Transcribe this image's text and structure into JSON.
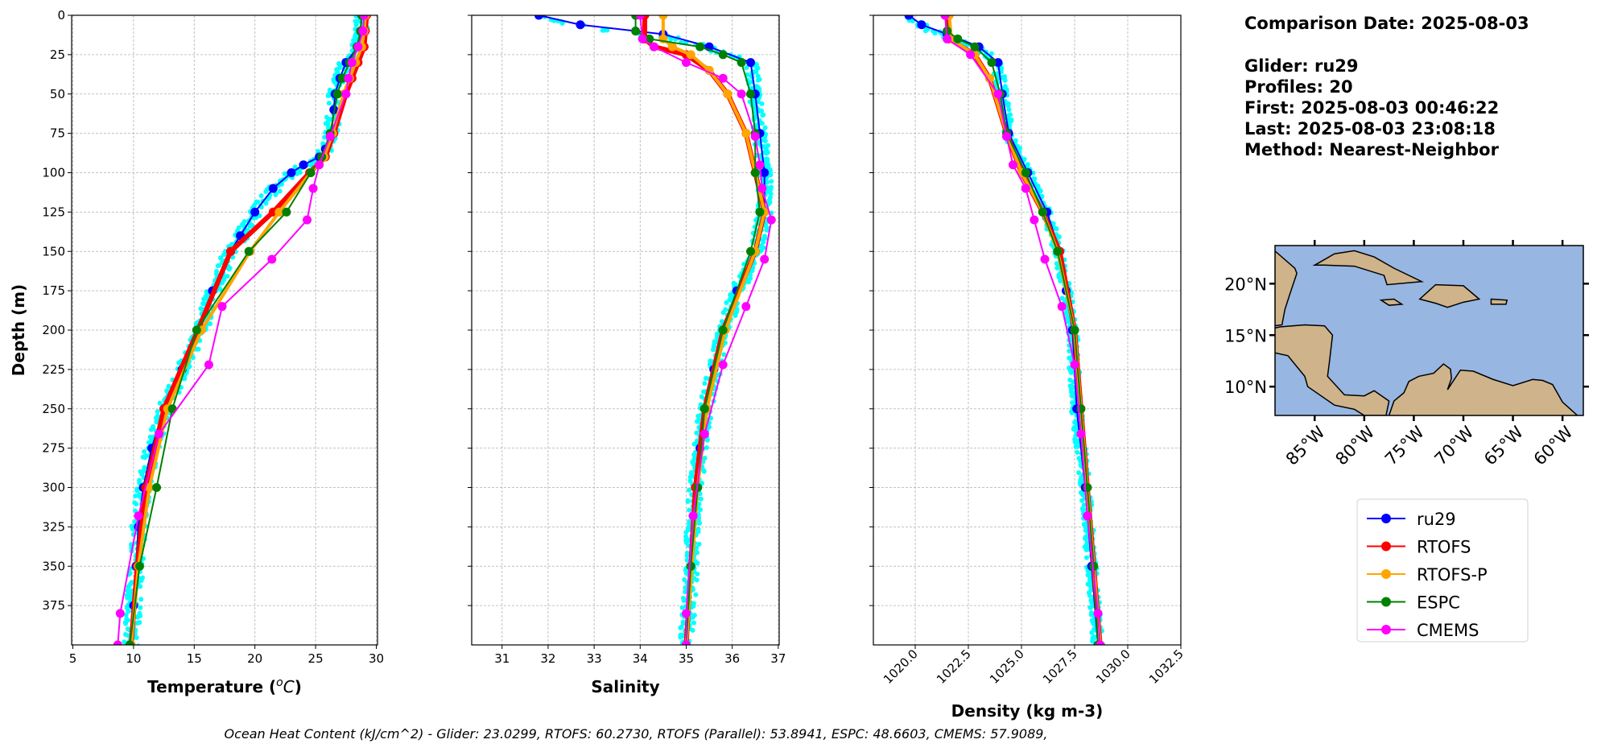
{
  "info": {
    "comparison_date": "Comparison Date: 2025-08-03",
    "glider": "Glider: ru29",
    "profiles": "Profiles: 20",
    "first": "First: 2025-08-03 00:46:22",
    "last": "Last: 2025-08-03 23:08:18",
    "method": "Method: Nearest-Neighbor"
  },
  "footer": "Ocean Heat Content (kJ/cm^2) - Glider: 23.0299,  RTOFS: 60.2730,  RTOFS (Parallel): 53.8941,  ESPC: 48.6603,  CMEMS: 57.9089,",
  "legend": [
    {
      "name": "ru29",
      "color": "#0000ff"
    },
    {
      "name": "RTOFS",
      "color": "#ff0000"
    },
    {
      "name": "RTOFS-P",
      "color": "#ffa500"
    },
    {
      "name": "ESPC",
      "color": "#008000"
    },
    {
      "name": "CMEMS",
      "color": "#ff00ff"
    }
  ],
  "map": {
    "lon_ticks": [
      "85°W",
      "80°W",
      "75°W",
      "70°W",
      "65°W",
      "60°W"
    ],
    "lon_values": [
      -85,
      -80,
      -75,
      -70,
      -65,
      -60
    ],
    "lat_ticks": [
      "20°N",
      "15°N",
      "10°N"
    ],
    "lat_values": [
      20,
      15,
      10
    ],
    "lon_range": [
      -89,
      -57.9
    ],
    "lat_range": [
      7.2,
      23.7
    ],
    "ocean_color": "#97b6e1",
    "land_color": "#cfb38a"
  },
  "chart_data": {
    "type": "line",
    "ylabel": "Depth (m)",
    "ylim": [
      400,
      0
    ],
    "yticks": [
      0,
      25,
      50,
      75,
      100,
      125,
      150,
      175,
      200,
      225,
      250,
      275,
      300,
      325,
      350,
      375
    ],
    "glider_raw_color": "#00ffff",
    "panels": [
      {
        "key": "temperature",
        "xlabel": "Temperature (",
        "xlabel_unit": "o",
        "xlabel_unit2": "C",
        "xlabel_end": ")",
        "xlim": [
          4.9,
          30.1
        ],
        "xticks": [
          5,
          10,
          15,
          20,
          25,
          30
        ],
        "raw_spread": 0.6,
        "series": {
          "ru29": [
            [
              0,
              28.8
            ],
            [
              10,
              28.7
            ],
            [
              20,
              28.5
            ],
            [
              30,
              27.5
            ],
            [
              40,
              27
            ],
            [
              50,
              26.6
            ],
            [
              60,
              26.5
            ],
            [
              75,
              26.3
            ],
            [
              85,
              25.8
            ],
            [
              90,
              25.3
            ],
            [
              95,
              24
            ],
            [
              100,
              23
            ],
            [
              110,
              21.5
            ],
            [
              125,
              20
            ],
            [
              140,
              18.8
            ],
            [
              150,
              18
            ],
            [
              175,
              16.5
            ],
            [
              200,
              15.5
            ],
            [
              225,
              14
            ],
            [
              250,
              12.5
            ],
            [
              275,
              11.5
            ],
            [
              300,
              10.8
            ],
            [
              325,
              10.4
            ],
            [
              350,
              10.2
            ],
            [
              375,
              10
            ],
            [
              400,
              9.8
            ]
          ],
          "RTOFS": [
            [
              0,
              29.2
            ],
            [
              10,
              29.1
            ],
            [
              20,
              29
            ],
            [
              30,
              28.5
            ],
            [
              40,
              28
            ],
            [
              50,
              27.5
            ],
            [
              75,
              26.5
            ],
            [
              90,
              25.8
            ],
            [
              100,
              24.5
            ],
            [
              125,
              21.5
            ],
            [
              150,
              18
            ],
            [
              200,
              15.3
            ],
            [
              250,
              12.5
            ],
            [
              300,
              11
            ],
            [
              350,
              10.3
            ],
            [
              400,
              9.8
            ]
          ],
          "RTOFS-P": [
            [
              0,
              29.1
            ],
            [
              10,
              29
            ],
            [
              20,
              28.8
            ],
            [
              30,
              28.3
            ],
            [
              40,
              27.8
            ],
            [
              50,
              27.3
            ],
            [
              75,
              26.4
            ],
            [
              90,
              25.7
            ],
            [
              100,
              24.6
            ],
            [
              125,
              22
            ],
            [
              150,
              19.6
            ],
            [
              200,
              15.6
            ],
            [
              250,
              12.8
            ],
            [
              300,
              11.3
            ],
            [
              350,
              10.4
            ],
            [
              400,
              9.8
            ]
          ],
          "ESPC": [
            [
              0,
              28.8
            ],
            [
              10,
              28.7
            ],
            [
              20,
              28.4
            ],
            [
              30,
              27.8
            ],
            [
              40,
              27.2
            ],
            [
              50,
              26.8
            ],
            [
              75,
              26.2
            ],
            [
              90,
              25.5
            ],
            [
              100,
              24.6
            ],
            [
              125,
              22.6
            ],
            [
              150,
              19.5
            ],
            [
              200,
              15.2
            ],
            [
              250,
              13.2
            ],
            [
              300,
              11.9
            ],
            [
              350,
              10.5
            ],
            [
              400,
              9.7
            ]
          ],
          "CMEMS": [
            [
              0,
              29
            ],
            [
              10,
              28.9
            ],
            [
              20,
              28.5
            ],
            [
              30,
              28
            ],
            [
              40,
              27.7
            ],
            [
              50,
              27.5
            ],
            [
              77,
              26.2
            ],
            [
              95,
              25.3
            ],
            [
              110,
              24.8
            ],
            [
              130,
              24.3
            ],
            [
              155,
              21.4
            ],
            [
              185,
              17.3
            ],
            [
              222,
              16.2
            ],
            [
              266,
              12.1
            ],
            [
              318,
              10.4
            ],
            [
              380,
              8.9
            ],
            [
              400,
              8.7
            ]
          ]
        }
      },
      {
        "key": "salinity",
        "xlabel": "Salinity",
        "xlim": [
          30.34,
          37.02
        ],
        "xticks": [
          31,
          32,
          33,
          34,
          35,
          36,
          37
        ],
        "raw_spread": 0.15,
        "series": {
          "ru29": [
            [
              0,
              31.8
            ],
            [
              6,
              32.7
            ],
            [
              12,
              34.5
            ],
            [
              20,
              35.5
            ],
            [
              30,
              36.4
            ],
            [
              50,
              36.5
            ],
            [
              75,
              36.6
            ],
            [
              100,
              36.7
            ],
            [
              125,
              36.7
            ],
            [
              150,
              36.5
            ],
            [
              175,
              36.1
            ],
            [
              200,
              35.8
            ],
            [
              225,
              35.6
            ],
            [
              250,
              35.4
            ],
            [
              275,
              35.3
            ],
            [
              300,
              35.2
            ],
            [
              350,
              35.1
            ],
            [
              400,
              35.0
            ]
          ],
          "RTOFS": [
            [
              0,
              34.1
            ],
            [
              15,
              34.1
            ],
            [
              20,
              34.3
            ],
            [
              25,
              35.0
            ],
            [
              35,
              35.5
            ],
            [
              50,
              35.9
            ],
            [
              75,
              36.3
            ],
            [
              100,
              36.5
            ],
            [
              125,
              36.7
            ],
            [
              150,
              36.5
            ],
            [
              200,
              35.8
            ],
            [
              250,
              35.4
            ],
            [
              300,
              35.2
            ],
            [
              400,
              35.0
            ]
          ],
          "RTOFS-P": [
            [
              0,
              34.5
            ],
            [
              15,
              34.5
            ],
            [
              20,
              34.7
            ],
            [
              25,
              35.1
            ],
            [
              35,
              35.5
            ],
            [
              50,
              35.9
            ],
            [
              75,
              36.3
            ],
            [
              100,
              36.5
            ],
            [
              125,
              36.7
            ],
            [
              150,
              36.5
            ],
            [
              200,
              35.85
            ],
            [
              250,
              35.45
            ],
            [
              300,
              35.25
            ],
            [
              400,
              35.0
            ]
          ],
          "ESPC": [
            [
              0,
              33.9
            ],
            [
              10,
              33.9
            ],
            [
              15,
              34.2
            ],
            [
              20,
              35.3
            ],
            [
              25,
              35.8
            ],
            [
              30,
              36.2
            ],
            [
              50,
              36.4
            ],
            [
              75,
              36.5
            ],
            [
              100,
              36.5
            ],
            [
              125,
              36.6
            ],
            [
              150,
              36.4
            ],
            [
              200,
              35.8
            ],
            [
              250,
              35.4
            ],
            [
              300,
              35.25
            ],
            [
              350,
              35.1
            ],
            [
              400,
              35.0
            ]
          ],
          "CMEMS": [
            [
              0,
              34.0
            ],
            [
              15,
              34.05
            ],
            [
              20,
              34.3
            ],
            [
              30,
              35.0
            ],
            [
              40,
              35.8
            ],
            [
              50,
              36.2
            ],
            [
              77,
              36.5
            ],
            [
              95,
              36.6
            ],
            [
              110,
              36.65
            ],
            [
              130,
              36.85
            ],
            [
              155,
              36.7
            ],
            [
              185,
              36.3
            ],
            [
              222,
              35.8
            ],
            [
              266,
              35.4
            ],
            [
              318,
              35.15
            ],
            [
              380,
              35.0
            ],
            [
              400,
              35.0
            ]
          ]
        }
      },
      {
        "key": "density",
        "xlabel": "Density (kg m-3)",
        "xlim": [
          1018.03,
          1032.5
        ],
        "xticks": [
          1020.0,
          1022.5,
          1025.0,
          1027.5,
          1030.0,
          1032.5
        ],
        "xtick_labels": [
          "1020.0",
          "1022.5",
          "1025.0",
          "1027.5",
          "1030.0",
          "1032.5"
        ],
        "raw_spread": 0.25,
        "series": {
          "ru29": [
            [
              0,
              1019.7
            ],
            [
              6,
              1020.3
            ],
            [
              12,
              1021.5
            ],
            [
              20,
              1023
            ],
            [
              30,
              1023.9
            ],
            [
              50,
              1024.1
            ],
            [
              75,
              1024.4
            ],
            [
              100,
              1025.3
            ],
            [
              125,
              1026.2
            ],
            [
              150,
              1026.8
            ],
            [
              175,
              1027.1
            ],
            [
              200,
              1027.4
            ],
            [
              250,
              1027.6
            ],
            [
              300,
              1028
            ],
            [
              350,
              1028.3
            ],
            [
              400,
              1028.6
            ]
          ],
          "RTOFS": [
            [
              0,
              1021.5
            ],
            [
              15,
              1021.6
            ],
            [
              25,
              1022.8
            ],
            [
              40,
              1023.5
            ],
            [
              75,
              1024.3
            ],
            [
              100,
              1025
            ],
            [
              125,
              1026
            ],
            [
              150,
              1026.8
            ],
            [
              200,
              1027.5
            ],
            [
              250,
              1027.8
            ],
            [
              300,
              1028.1
            ],
            [
              400,
              1028.7
            ]
          ],
          "RTOFS-P": [
            [
              0,
              1021.6
            ],
            [
              15,
              1021.7
            ],
            [
              25,
              1022.8
            ],
            [
              40,
              1023.5
            ],
            [
              75,
              1024.3
            ],
            [
              100,
              1025
            ],
            [
              125,
              1026
            ],
            [
              150,
              1026.7
            ],
            [
              200,
              1027.5
            ],
            [
              250,
              1027.8
            ],
            [
              300,
              1028.1
            ],
            [
              400,
              1028.7
            ]
          ],
          "ESPC": [
            [
              0,
              1021.4
            ],
            [
              10,
              1021.5
            ],
            [
              15,
              1022.0
            ],
            [
              20,
              1022.8
            ],
            [
              30,
              1023.6
            ],
            [
              50,
              1024
            ],
            [
              75,
              1024.3
            ],
            [
              100,
              1025.2
            ],
            [
              125,
              1026
            ],
            [
              150,
              1026.7
            ],
            [
              200,
              1027.5
            ],
            [
              250,
              1027.8
            ],
            [
              300,
              1028.1
            ],
            [
              350,
              1028.4
            ],
            [
              400,
              1028.6
            ]
          ],
          "CMEMS": [
            [
              0,
              1021.4
            ],
            [
              15,
              1021.5
            ],
            [
              25,
              1022.6
            ],
            [
              50,
              1023.9
            ],
            [
              77,
              1024.3
            ],
            [
              95,
              1024.6
            ],
            [
              110,
              1025.2
            ],
            [
              130,
              1025.6
            ],
            [
              155,
              1026.1
            ],
            [
              185,
              1026.9
            ],
            [
              222,
              1027.5
            ],
            [
              266,
              1027.8
            ],
            [
              318,
              1028.1
            ],
            [
              380,
              1028.6
            ],
            [
              400,
              1028.7
            ]
          ]
        }
      }
    ]
  }
}
